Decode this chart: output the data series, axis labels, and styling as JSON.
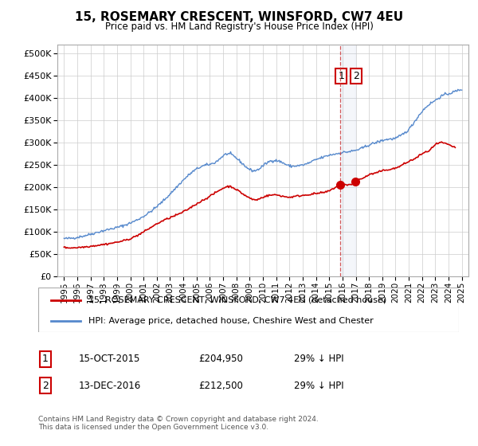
{
  "title": "15, ROSEMARY CRESCENT, WINSFORD, CW7 4EU",
  "subtitle": "Price paid vs. HM Land Registry's House Price Index (HPI)",
  "legend_line1": "15, ROSEMARY CRESCENT, WINSFORD, CW7 4EU (detached house)",
  "legend_line2": "HPI: Average price, detached house, Cheshire West and Chester",
  "annotation1_label": "1",
  "annotation1_date": "15-OCT-2015",
  "annotation1_price": "£204,950",
  "annotation1_hpi": "29% ↓ HPI",
  "annotation2_label": "2",
  "annotation2_date": "13-DEC-2016",
  "annotation2_price": "£212,500",
  "annotation2_hpi": "29% ↓ HPI",
  "footer": "Contains HM Land Registry data © Crown copyright and database right 2024.\nThis data is licensed under the Open Government Licence v3.0.",
  "hpi_color": "#5588cc",
  "price_color": "#cc0000",
  "point_color": "#cc0000",
  "marker1_x": 2015.8,
  "marker2_x": 2016.95,
  "marker1_y": 204950,
  "marker2_y": 212500,
  "vline1_x": 2015.8,
  "vline2_x": 2016.95,
  "ylim": [
    0,
    520000
  ],
  "xlim": [
    1994.5,
    2025.5
  ],
  "yticks": [
    0,
    50000,
    100000,
    150000,
    200000,
    250000,
    300000,
    350000,
    400000,
    450000,
    500000
  ],
  "xticks": [
    1995,
    1996,
    1997,
    1998,
    1999,
    2000,
    2001,
    2002,
    2003,
    2004,
    2005,
    2006,
    2007,
    2008,
    2009,
    2010,
    2011,
    2012,
    2013,
    2014,
    2015,
    2016,
    2017,
    2018,
    2019,
    2020,
    2021,
    2022,
    2023,
    2024,
    2025
  ],
  "background_color": "#ffffff",
  "grid_color": "#cccccc"
}
